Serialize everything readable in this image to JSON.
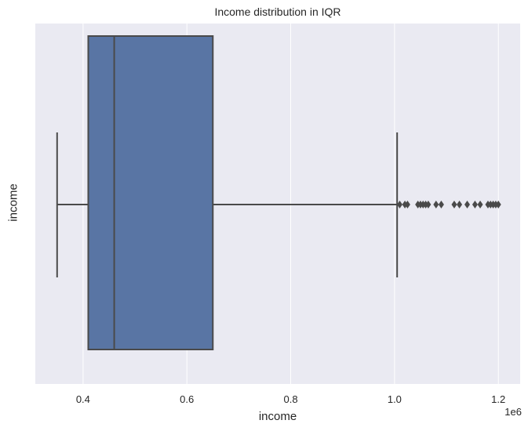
{
  "chart_data": {
    "type": "box",
    "title": "Income distribution in IQR",
    "xlabel": "income",
    "ylabel": "income",
    "x_offset_label": "1e6",
    "xlim": [
      0.308,
      1.242
    ],
    "xticks": [
      0.4,
      0.6,
      0.8,
      1.0,
      1.2
    ],
    "xtick_labels": [
      "0.4",
      "0.6",
      "0.8",
      "1.0",
      "1.2"
    ],
    "grid": true,
    "orientation": "horizontal",
    "box": {
      "whisker_low": 0.35,
      "q1": 0.41,
      "median": 0.46,
      "q3": 0.65,
      "whisker_high": 1.005,
      "fliers": [
        1.01,
        1.02,
        1.025,
        1.045,
        1.05,
        1.055,
        1.06,
        1.065,
        1.08,
        1.09,
        1.115,
        1.125,
        1.14,
        1.155,
        1.165,
        1.18,
        1.185,
        1.19,
        1.195,
        1.2
      ]
    },
    "colors": {
      "box_fill": "#5975a4",
      "line": "#4a4a4a",
      "background": "#eaeaf2",
      "grid": "#ffffff"
    }
  }
}
